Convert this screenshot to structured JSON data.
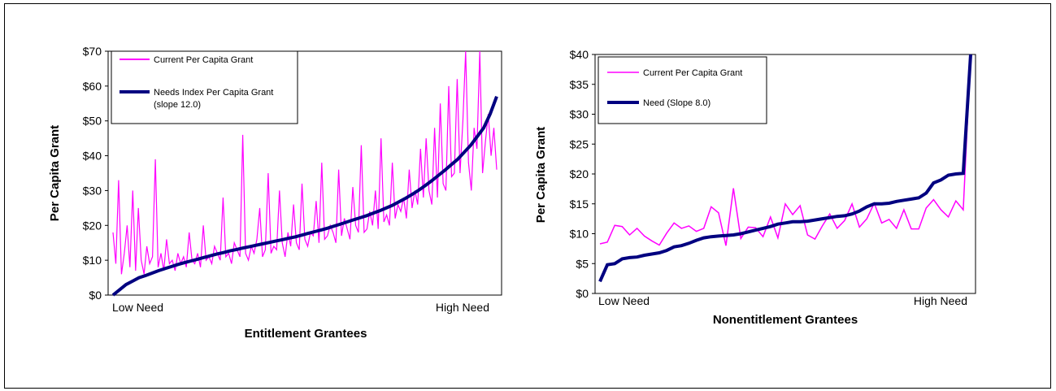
{
  "charts": [
    {
      "chart_data": {
        "type": "line",
        "title": "",
        "xlabel": "Entitlement Grantees",
        "ylabel": "Per Capita Grant",
        "x_tick_labels": [
          "Low Need",
          "High Need"
        ],
        "y_tick_labels": [
          "$0",
          "$10",
          "$20",
          "$30",
          "$40",
          "$50",
          "$60",
          "$70"
        ],
        "y_ticks": [
          0,
          10,
          20,
          30,
          40,
          50,
          60,
          70
        ],
        "ylim": [
          0,
          70
        ],
        "grid": false,
        "legend_position": "top-left",
        "legend": [
          "Current Per Capita Grant",
          "Needs Index Per Capita Grant",
          "(slope 12.0)"
        ],
        "series": [
          {
            "name": "Current Per Capita Grant",
            "color": "#ff00ff",
            "values": [
              18,
              9,
              33,
              6,
              12,
              20,
              8,
              30,
              7,
              25,
              10,
              6,
              14,
              9,
              11,
              39,
              8,
              12,
              7,
              16,
              9,
              10,
              7,
              12,
              9,
              11,
              8,
              18,
              10,
              9,
              12,
              8,
              20,
              10,
              11,
              9,
              14,
              12,
              10,
              28,
              11,
              12,
              9,
              15,
              13,
              11,
              46,
              12,
              10,
              14,
              12,
              16,
              25,
              11,
              13,
              35,
              12,
              14,
              13,
              30,
              15,
              11,
              18,
              14,
              26,
              15,
              13,
              32,
              16,
              14,
              18,
              17,
              27,
              15,
              38,
              16,
              17,
              20,
              18,
              15,
              36,
              17,
              22,
              19,
              16,
              31,
              20,
              18,
              43,
              18,
              19,
              24,
              20,
              30,
              19,
              45,
              21,
              23,
              20,
              38,
              22,
              26,
              24,
              28,
              22,
              36,
              25,
              30,
              26,
              42,
              28,
              45,
              30,
              26,
              48,
              28,
              55,
              32,
              30,
              60,
              34,
              35,
              62,
              35,
              50,
              70,
              38,
              30,
              48,
              42,
              70,
              35,
              44,
              52,
              40,
              48,
              36
            ]
          },
          {
            "name": "Needs Index Per Capita Grant",
            "color": "#000080",
            "values": [
              0,
              1.5,
              3,
              4,
              5,
              5.6,
              6.3,
              7,
              7.6,
              8.2,
              8.8,
              9.3,
              9.8,
              10.3,
              10.8,
              11.3,
              11.8,
              12.2,
              12.7,
              13.1,
              13.5,
              13.9,
              14.3,
              14.7,
              15.1,
              15.5,
              15.9,
              16.3,
              16.7,
              17.2,
              17.7,
              18.2,
              18.7,
              19.2,
              19.8,
              20.4,
              21.0,
              21.6,
              22.2,
              22.8,
              23.5,
              24.2,
              25.0,
              25.8,
              26.8,
              27.8,
              28.9,
              30.1,
              31.4,
              32.8,
              34.3,
              35.8,
              37.4,
              39.0,
              41.0,
              43.0,
              45.5,
              48.0,
              52.0,
              57.0
            ]
          }
        ]
      }
    },
    {
      "chart_data": {
        "type": "line",
        "title": "",
        "xlabel": "Nonentitlement Grantees",
        "ylabel": "Per Capita Grant",
        "x_tick_labels": [
          "Low Need",
          "High Need"
        ],
        "y_tick_labels": [
          "$0",
          "$5",
          "$10",
          "$15",
          "$20",
          "$25",
          "$30",
          "$35",
          "$40"
        ],
        "y_ticks": [
          0,
          5,
          10,
          15,
          20,
          25,
          30,
          35,
          40
        ],
        "ylim": [
          0,
          40
        ],
        "grid": false,
        "legend_position": "top-left",
        "legend": [
          "Current Per Capita Grant",
          "Need (Slope 8.0)"
        ],
        "series": [
          {
            "name": "Current Per Capita Grant",
            "color": "#ff00ff",
            "values": [
              8.3,
              8.6,
              11.4,
              11.2,
              9.8,
              10.9,
              9.6,
              8.8,
              8.1,
              10.1,
              11.8,
              10.9,
              11.3,
              10.4,
              10.9,
              14.5,
              13.5,
              8.0,
              17.6,
              9.2,
              11.1,
              11.0,
              9.5,
              12.8,
              9.3,
              15.0,
              13.2,
              14.7,
              9.8,
              9.1,
              11.3,
              13.3,
              10.9,
              12.2,
              15.0,
              11.1,
              12.5,
              15.1,
              11.8,
              12.4,
              10.9,
              14.0,
              10.8,
              10.8,
              14.3,
              15.7,
              14.0,
              12.8,
              15.5,
              14.0,
              40.0
            ]
          },
          {
            "name": "Need (Slope 8.0)",
            "color": "#000080",
            "values": [
              2.0,
              4.8,
              5.0,
              5.8,
              6.0,
              6.1,
              6.4,
              6.6,
              6.8,
              7.2,
              7.8,
              8.0,
              8.4,
              8.9,
              9.3,
              9.5,
              9.6,
              9.7,
              9.8,
              10.0,
              10.3,
              10.6,
              10.9,
              11.2,
              11.6,
              11.8,
              12.0,
              12.0,
              12.1,
              12.3,
              12.5,
              12.7,
              12.9,
              13.0,
              13.3,
              13.8,
              14.5,
              15.0,
              15.0,
              15.1,
              15.4,
              15.6,
              15.8,
              16.0,
              16.8,
              18.5,
              19.0,
              19.8,
              20.0,
              20.1,
              40.0
            ]
          }
        ]
      }
    }
  ]
}
